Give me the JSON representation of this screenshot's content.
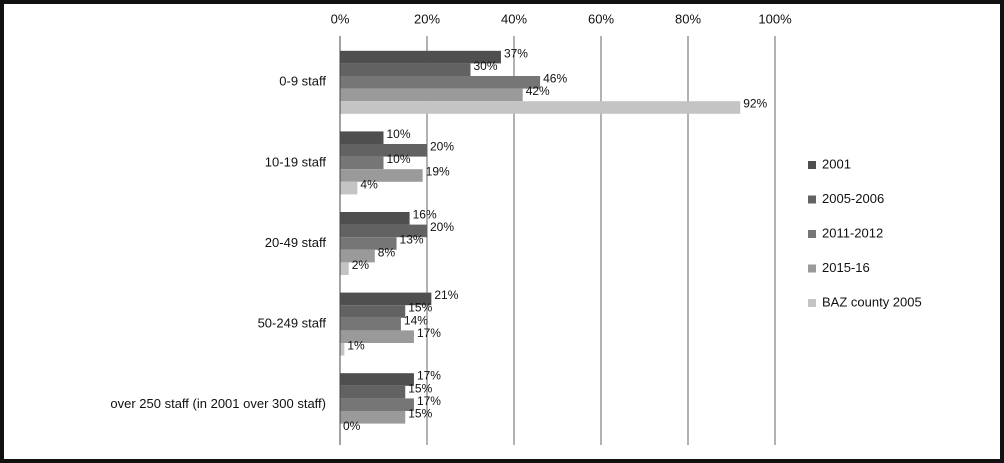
{
  "chart_data": {
    "type": "hbar",
    "categories": [
      "0-9 staff",
      "10-19 staff",
      "20-49 staff",
      "50-249 staff",
      "over 250 staff (in 2001 over 300 staff)"
    ],
    "series": [
      {
        "name": "2001",
        "color": "#4f4f4f",
        "values": [
          37,
          10,
          16,
          21,
          17
        ],
        "value_labels": [
          "37%",
          "10%",
          "16%",
          "21%",
          "17%"
        ]
      },
      {
        "name": "2005-2006",
        "color": "#626262",
        "values": [
          30,
          20,
          20,
          15,
          15
        ],
        "value_labels": [
          "30%",
          "20%",
          "20%",
          "15%",
          "15%"
        ]
      },
      {
        "name": "2011-2012",
        "color": "#767676",
        "values": [
          46,
          10,
          13,
          14,
          17
        ],
        "value_labels": [
          "46%",
          "10%",
          "13%",
          "14%",
          "17%"
        ]
      },
      {
        "name": "2015-16",
        "color": "#9a9a9a",
        "values": [
          42,
          19,
          8,
          17,
          15
        ],
        "value_labels": [
          "42%",
          "19%",
          "8%",
          "17%",
          "15%"
        ]
      },
      {
        "name": "BAZ county 2005",
        "color": "#c4c4c4",
        "values": [
          92,
          4,
          2,
          1,
          0
        ],
        "value_labels": [
          "92%",
          "4%",
          "2%",
          "1%",
          "0%"
        ]
      }
    ],
    "xlim": [
      0,
      100
    ],
    "xticks": [
      {
        "value": 0,
        "label": "0%"
      },
      {
        "value": 20,
        "label": "20%"
      },
      {
        "value": 40,
        "label": "40%"
      },
      {
        "value": 60,
        "label": "60%"
      },
      {
        "value": 80,
        "label": "80%"
      },
      {
        "value": 100,
        "label": "100%"
      }
    ],
    "grid": true,
    "legend": "right"
  }
}
